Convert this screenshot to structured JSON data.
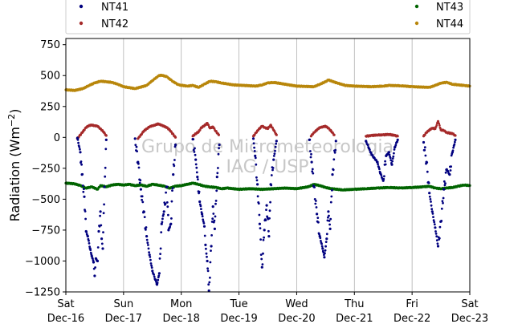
{
  "chart_data": {
    "type": "scatter",
    "title": "",
    "xlabel": "",
    "ylabel": "Radiation (Wm",
    "ylabel_exponent": "−2",
    "ylabel_close": ")",
    "ylim": [
      -1250,
      800
    ],
    "yticks": [
      -1250,
      -1000,
      -750,
      -500,
      -250,
      0,
      250,
      500,
      750
    ],
    "ytick_labels": [
      "−1250",
      "−1000",
      "−750",
      "−500",
      "−250",
      "0",
      "250",
      "500",
      "750"
    ],
    "xlim": [
      0,
      7
    ],
    "x_unit": "days from Sat Dec-16 00:00",
    "xticks": [
      {
        "x": 0,
        "day": "Sat",
        "date": "Dec-16"
      },
      {
        "x": 1,
        "day": "Sun",
        "date": "Dec-17"
      },
      {
        "x": 2,
        "day": "Mon",
        "date": "Dec-18"
      },
      {
        "x": 3,
        "day": "Tue",
        "date": "Dec-19"
      },
      {
        "x": 4,
        "day": "Wed",
        "date": "Dec-20"
      },
      {
        "x": 5,
        "day": "Thu",
        "date": "Dec-21"
      },
      {
        "x": 6,
        "day": "Fri",
        "date": "Dec-22"
      },
      {
        "x": 7,
        "day": "Sat",
        "date": "Dec-23"
      }
    ],
    "grid": "vertical",
    "watermark": [
      "Grupo de Micrometeorologia",
      "IAG / USP"
    ],
    "legend": {
      "placement": "top",
      "entries": [
        {
          "name": "NT41",
          "color": "#00007f"
        },
        {
          "name": "NT42",
          "color": "#a52a2a"
        },
        {
          "name": "NT43",
          "color": "#006400"
        },
        {
          "name": "NT44",
          "color": "#b8860b"
        }
      ]
    },
    "series": [
      {
        "name": "NT44",
        "color": "#b8860b",
        "points": [
          [
            0,
            385
          ],
          [
            0.15,
            380
          ],
          [
            0.3,
            395
          ],
          [
            0.4,
            420
          ],
          [
            0.5,
            440
          ],
          [
            0.6,
            455
          ],
          [
            0.7,
            450
          ],
          [
            0.8,
            445
          ],
          [
            0.9,
            430
          ],
          [
            1.0,
            410
          ],
          [
            1.2,
            395
          ],
          [
            1.4,
            420
          ],
          [
            1.5,
            460
          ],
          [
            1.6,
            495
          ],
          [
            1.65,
            505
          ],
          [
            1.75,
            490
          ],
          [
            1.85,
            455
          ],
          [
            1.95,
            425
          ],
          [
            2.1,
            415
          ],
          [
            2.2,
            420
          ],
          [
            2.3,
            405
          ],
          [
            2.4,
            430
          ],
          [
            2.5,
            455
          ],
          [
            2.6,
            450
          ],
          [
            2.7,
            440
          ],
          [
            2.9,
            425
          ],
          [
            3.1,
            420
          ],
          [
            3.3,
            415
          ],
          [
            3.4,
            425
          ],
          [
            3.5,
            440
          ],
          [
            3.6,
            445
          ],
          [
            3.8,
            430
          ],
          [
            4.0,
            415
          ],
          [
            4.3,
            410
          ],
          [
            4.4,
            430
          ],
          [
            4.5,
            450
          ],
          [
            4.55,
            465
          ],
          [
            4.7,
            440
          ],
          [
            4.85,
            420
          ],
          [
            5.0,
            415
          ],
          [
            5.3,
            410
          ],
          [
            5.5,
            415
          ],
          [
            5.6,
            420
          ],
          [
            5.8,
            418
          ],
          [
            6.0,
            410
          ],
          [
            6.3,
            405
          ],
          [
            6.4,
            420
          ],
          [
            6.5,
            440
          ],
          [
            6.6,
            445
          ],
          [
            6.7,
            430
          ],
          [
            6.9,
            420
          ],
          [
            7.0,
            415
          ]
        ]
      },
      {
        "name": "NT43",
        "color": "#006400",
        "points": [
          [
            0,
            -370
          ],
          [
            0.15,
            -375
          ],
          [
            0.25,
            -390
          ],
          [
            0.35,
            -410
          ],
          [
            0.45,
            -400
          ],
          [
            0.55,
            -420
          ],
          [
            0.6,
            -390
          ],
          [
            0.7,
            -400
          ],
          [
            0.8,
            -385
          ],
          [
            0.9,
            -380
          ],
          [
            1.0,
            -385
          ],
          [
            1.1,
            -380
          ],
          [
            1.2,
            -390
          ],
          [
            1.3,
            -385
          ],
          [
            1.4,
            -395
          ],
          [
            1.5,
            -380
          ],
          [
            1.6,
            -385
          ],
          [
            1.7,
            -395
          ],
          [
            1.8,
            -410
          ],
          [
            1.9,
            -395
          ],
          [
            2.0,
            -390
          ],
          [
            2.2,
            -370
          ],
          [
            2.3,
            -380
          ],
          [
            2.4,
            -395
          ],
          [
            2.5,
            -400
          ],
          [
            2.6,
            -405
          ],
          [
            2.7,
            -415
          ],
          [
            2.8,
            -410
          ],
          [
            3.0,
            -420
          ],
          [
            3.2,
            -415
          ],
          [
            3.4,
            -420
          ],
          [
            3.6,
            -415
          ],
          [
            3.8,
            -410
          ],
          [
            4.0,
            -415
          ],
          [
            4.2,
            -400
          ],
          [
            4.3,
            -380
          ],
          [
            4.4,
            -390
          ],
          [
            4.5,
            -405
          ],
          [
            4.6,
            -415
          ],
          [
            4.8,
            -425
          ],
          [
            5.0,
            -420
          ],
          [
            5.2,
            -415
          ],
          [
            5.4,
            -410
          ],
          [
            5.6,
            -405
          ],
          [
            5.8,
            -410
          ],
          [
            6.0,
            -405
          ],
          [
            6.2,
            -400
          ],
          [
            6.3,
            -395
          ],
          [
            6.4,
            -410
          ],
          [
            6.5,
            -415
          ],
          [
            6.6,
            -410
          ],
          [
            6.7,
            -405
          ],
          [
            6.8,
            -395
          ],
          [
            6.9,
            -385
          ],
          [
            7.0,
            -390
          ]
        ]
      },
      {
        "name": "NT42",
        "color": "#a52a2a",
        "points": [
          [
            0.2,
            -10
          ],
          [
            0.25,
            20
          ],
          [
            0.3,
            50
          ],
          [
            0.35,
            80
          ],
          [
            0.4,
            95
          ],
          [
            0.45,
            100
          ],
          [
            0.5,
            95
          ],
          [
            0.55,
            90
          ],
          [
            0.6,
            70
          ],
          [
            0.65,
            45
          ],
          [
            0.7,
            15
          ],
          [
            1.25,
            -10
          ],
          [
            1.3,
            20
          ],
          [
            1.35,
            50
          ],
          [
            1.4,
            70
          ],
          [
            1.45,
            85
          ],
          [
            1.5,
            95
          ],
          [
            1.55,
            100
          ],
          [
            1.6,
            110
          ],
          [
            1.65,
            100
          ],
          [
            1.7,
            90
          ],
          [
            1.75,
            80
          ],
          [
            1.8,
            60
          ],
          [
            1.85,
            30
          ],
          [
            1.9,
            0
          ],
          [
            2.2,
            10
          ],
          [
            2.25,
            30
          ],
          [
            2.3,
            45
          ],
          [
            2.35,
            80
          ],
          [
            2.4,
            95
          ],
          [
            2.45,
            115
          ],
          [
            2.5,
            75
          ],
          [
            2.55,
            85
          ],
          [
            2.6,
            50
          ],
          [
            2.65,
            20
          ],
          [
            3.25,
            10
          ],
          [
            3.3,
            40
          ],
          [
            3.35,
            70
          ],
          [
            3.4,
            90
          ],
          [
            3.45,
            80
          ],
          [
            3.5,
            70
          ],
          [
            3.55,
            100
          ],
          [
            3.6,
            60
          ],
          [
            3.65,
            20
          ],
          [
            4.25,
            10
          ],
          [
            4.3,
            40
          ],
          [
            4.35,
            60
          ],
          [
            4.4,
            80
          ],
          [
            4.45,
            85
          ],
          [
            4.5,
            90
          ],
          [
            4.55,
            75
          ],
          [
            4.6,
            50
          ],
          [
            4.65,
            20
          ],
          [
            5.2,
            10
          ],
          [
            5.3,
            15
          ],
          [
            5.4,
            20
          ],
          [
            5.5,
            20
          ],
          [
            5.6,
            25
          ],
          [
            5.7,
            15
          ],
          [
            5.75,
            10
          ],
          [
            6.2,
            10
          ],
          [
            6.25,
            40
          ],
          [
            6.3,
            60
          ],
          [
            6.35,
            75
          ],
          [
            6.4,
            70
          ],
          [
            6.45,
            130
          ],
          [
            6.5,
            60
          ],
          [
            6.55,
            55
          ],
          [
            6.6,
            40
          ],
          [
            6.7,
            30
          ],
          [
            6.75,
            15
          ]
        ]
      },
      {
        "name": "NT41",
        "color": "#00007f",
        "points": [
          [
            0.2,
            -5
          ],
          [
            0.25,
            -120
          ],
          [
            0.28,
            -300
          ],
          [
            0.32,
            -480
          ],
          [
            0.35,
            -760
          ],
          [
            0.38,
            -800
          ],
          [
            0.42,
            -900
          ],
          [
            0.45,
            -960
          ],
          [
            0.48,
            -1010
          ],
          [
            0.5,
            -1120
          ],
          [
            0.52,
            -980
          ],
          [
            0.55,
            -1000
          ],
          [
            0.57,
            -760
          ],
          [
            0.6,
            -600
          ],
          [
            0.62,
            -820
          ],
          [
            0.64,
            -900
          ],
          [
            0.67,
            -400
          ],
          [
            0.7,
            -20
          ],
          [
            1.2,
            -10
          ],
          [
            1.25,
            -200
          ],
          [
            1.3,
            -420
          ],
          [
            1.35,
            -600
          ],
          [
            1.4,
            -800
          ],
          [
            1.45,
            -950
          ],
          [
            1.5,
            -1080
          ],
          [
            1.55,
            -1150
          ],
          [
            1.58,
            -1190
          ],
          [
            1.62,
            -1100
          ],
          [
            1.66,
            -700
          ],
          [
            1.7,
            -600
          ],
          [
            1.75,
            -400
          ],
          [
            1.78,
            -750
          ],
          [
            1.82,
            -700
          ],
          [
            1.86,
            -300
          ],
          [
            1.9,
            -60
          ],
          [
            2.2,
            -15
          ],
          [
            2.25,
            -180
          ],
          [
            2.28,
            -320
          ],
          [
            2.32,
            -520
          ],
          [
            2.36,
            -620
          ],
          [
            2.4,
            -720
          ],
          [
            2.42,
            -870
          ],
          [
            2.45,
            -1000
          ],
          [
            2.48,
            -1240
          ],
          [
            2.52,
            -880
          ],
          [
            2.55,
            -560
          ],
          [
            2.58,
            -740
          ],
          [
            2.62,
            -320
          ],
          [
            2.66,
            -60
          ],
          [
            3.25,
            -10
          ],
          [
            3.28,
            -150
          ],
          [
            3.32,
            -380
          ],
          [
            3.36,
            -700
          ],
          [
            3.4,
            -1050
          ],
          [
            3.44,
            -750
          ],
          [
            3.48,
            -550
          ],
          [
            3.52,
            -800
          ],
          [
            3.55,
            -380
          ],
          [
            3.6,
            -180
          ],
          [
            3.65,
            -30
          ],
          [
            4.22,
            -20
          ],
          [
            4.26,
            -200
          ],
          [
            4.3,
            -400
          ],
          [
            4.35,
            -620
          ],
          [
            4.4,
            -800
          ],
          [
            4.45,
            -900
          ],
          [
            4.48,
            -970
          ],
          [
            4.52,
            -820
          ],
          [
            4.55,
            -600
          ],
          [
            4.58,
            -740
          ],
          [
            4.62,
            -300
          ],
          [
            4.68,
            -30
          ],
          [
            5.2,
            -30
          ],
          [
            5.3,
            -140
          ],
          [
            5.4,
            -200
          ],
          [
            5.45,
            -290
          ],
          [
            5.5,
            -350
          ],
          [
            5.55,
            -150
          ],
          [
            5.6,
            -120
          ],
          [
            5.65,
            -220
          ],
          [
            5.7,
            -80
          ],
          [
            5.75,
            -20
          ],
          [
            6.2,
            -40
          ],
          [
            6.25,
            -200
          ],
          [
            6.3,
            -450
          ],
          [
            6.35,
            -600
          ],
          [
            6.4,
            -730
          ],
          [
            6.45,
            -880
          ],
          [
            6.5,
            -680
          ],
          [
            6.55,
            -420
          ],
          [
            6.6,
            -260
          ],
          [
            6.65,
            -300
          ],
          [
            6.7,
            -120
          ],
          [
            6.75,
            -20
          ]
        ]
      }
    ]
  }
}
